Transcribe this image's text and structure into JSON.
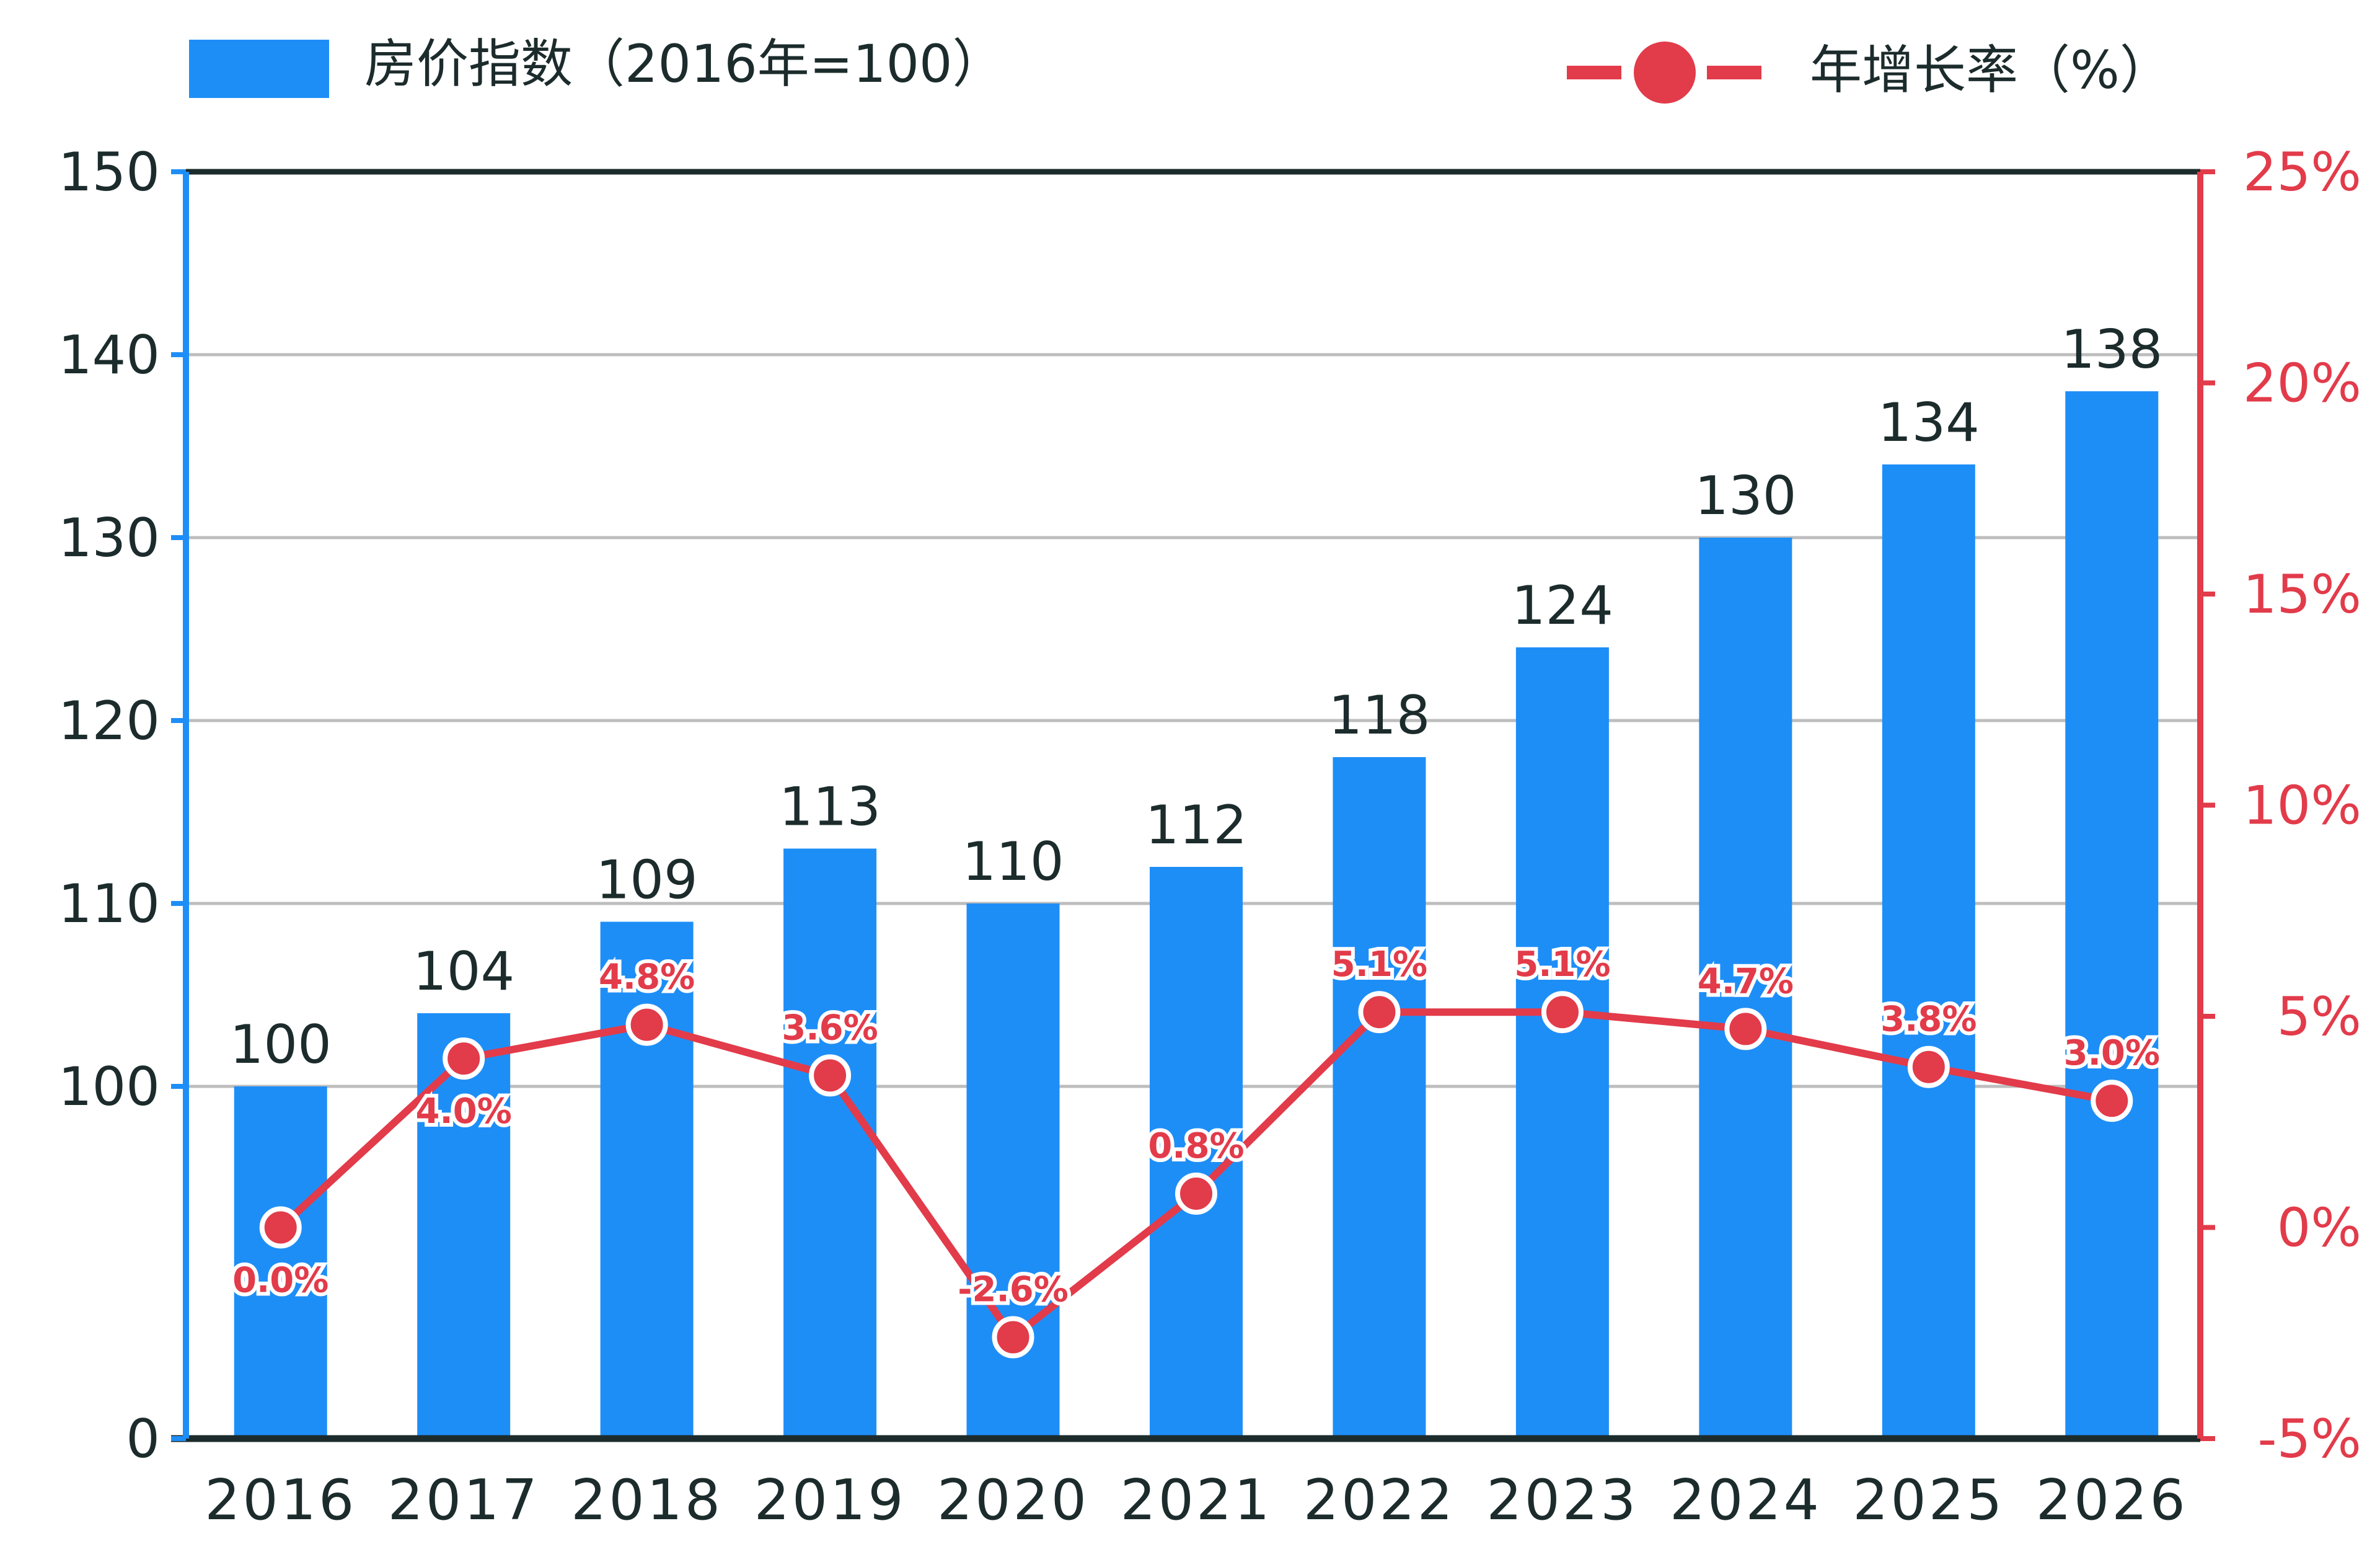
{
  "chart_data": {
    "type": "bar+line",
    "categories": [
      "2016",
      "2017",
      "2018",
      "2019",
      "2020",
      "2021",
      "2022",
      "2023",
      "2024",
      "2025",
      "2026"
    ],
    "series": [
      {
        "name": "房价指数（2016年=100）",
        "type": "bar",
        "axis": "left",
        "values": [
          100.0,
          104.0,
          109.0,
          113.0,
          110.0,
          112.0,
          118.0,
          124.0,
          130.0,
          134.0,
          138.0
        ],
        "labels": [
          "100",
          "104",
          "109",
          "113",
          "110",
          "112",
          "118",
          "124",
          "130",
          "134",
          "138"
        ],
        "color": "#1e8ef7"
      },
      {
        "name": "年增长率（%）",
        "type": "line",
        "axis": "right",
        "values": [
          0.0,
          4.0,
          4.8,
          3.6,
          -2.6,
          0.8,
          5.1,
          5.1,
          4.7,
          3.8,
          3.0
        ],
        "labels": [
          "0.0%",
          "4.0%",
          "4.8%",
          "3.6%",
          "-2.6%",
          "0.8%",
          "5.1%",
          "5.1%",
          "4.7%",
          "3.8%",
          "3.0%"
        ],
        "color": "#e23b4a"
      }
    ],
    "left_axis": {
      "ticks": [
        0,
        100,
        110,
        120,
        130,
        140,
        150
      ],
      "tick_labels": [
        "0",
        "100",
        "110",
        "120",
        "130",
        "140",
        "150"
      ],
      "broken": true,
      "color": "#1e8ef7"
    },
    "right_axis": {
      "ylim": [
        -5,
        25
      ],
      "ticks": [
        -5,
        0,
        5,
        10,
        15,
        20,
        25
      ],
      "tick_labels": [
        "-5%",
        "0%",
        "5%",
        "10%",
        "15%",
        "20%",
        "25%"
      ],
      "color": "#e23b4a"
    },
    "grid": true,
    "legend": [
      "top-left",
      "top-right"
    ],
    "title": "",
    "xlabel": "",
    "ylabel": ""
  },
  "colors": {
    "bar": "#1e8ef7",
    "line": "#e23b4a",
    "grid": "#bdbdbd",
    "frame": "#1c2b2b",
    "text": "#1c2b2b"
  }
}
